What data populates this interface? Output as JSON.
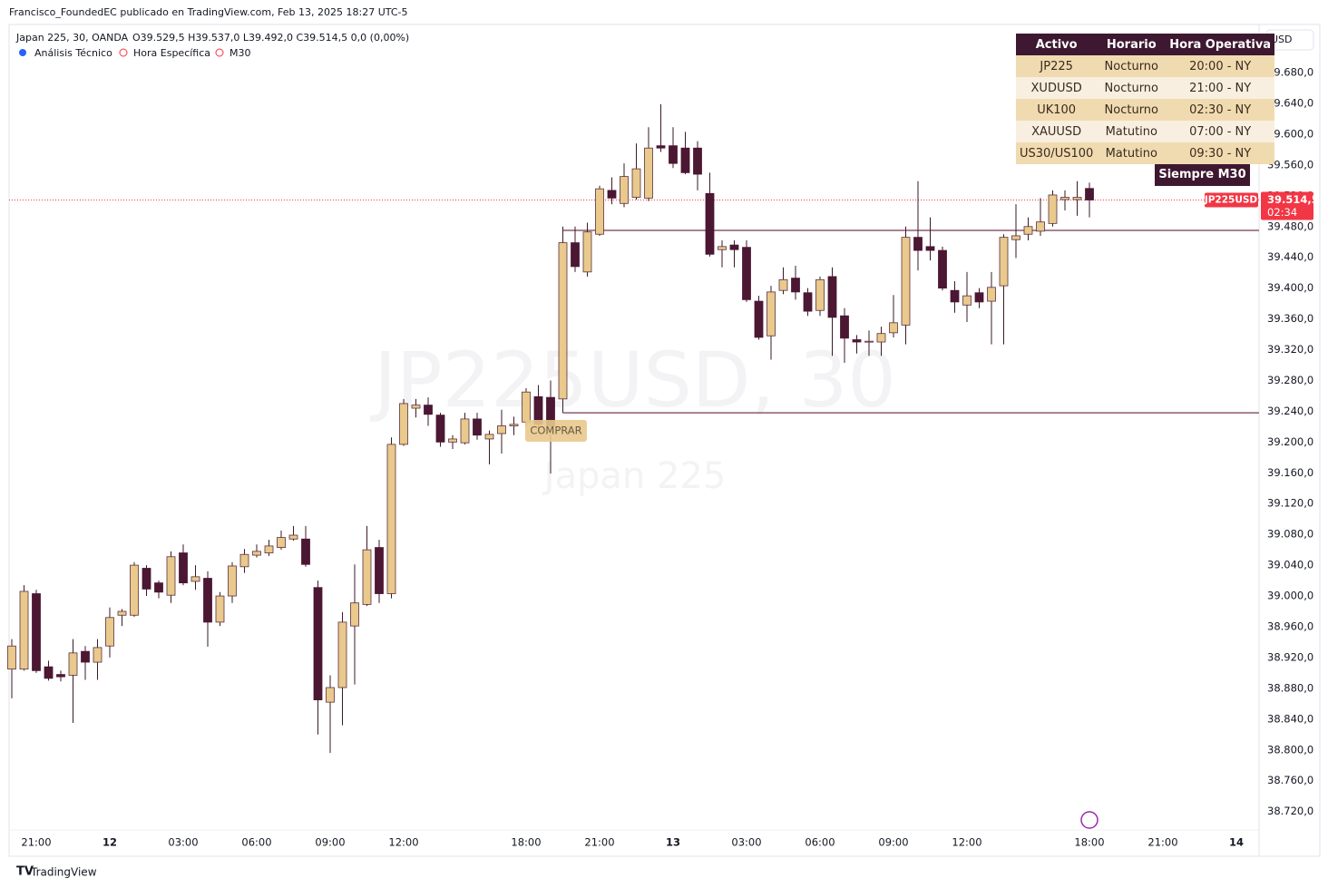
{
  "header": {
    "published": "Francisco_FoundedEC publicado en TradingView.com, Feb 13, 2025 18:27 UTC-5",
    "symbol": "Japan 225, 30, OANDA",
    "ohlc": "O39.529,5 H39.537,0 L39.492,0 C39.514,5 0,0 (0,00%)",
    "indicators": [
      "Análisis Técnico",
      "Hora Específica",
      "M30"
    ],
    "currency": "USD"
  },
  "watermark": {
    "main": "JP225USD, 30",
    "sub": "Japan 225"
  },
  "table": {
    "columns": [
      "Activo",
      "Horario",
      "Hora Operativa"
    ],
    "rows": [
      [
        "JP225",
        "Nocturno",
        "20:00 - NY"
      ],
      [
        "XUDUSD",
        "Nocturno",
        "21:00 - NY"
      ],
      [
        "UK100",
        "Nocturno",
        "02:30 - NY"
      ],
      [
        "XAUUSD",
        "Matutino",
        "07:00 - NY"
      ],
      [
        "US30/US100",
        "Matutino",
        "09:30 - NY"
      ]
    ],
    "footer": "Siempre M30"
  },
  "chart_data": {
    "type": "candlestick",
    "categories": [
      null,
      null,
      "21:00",
      null,
      null,
      null,
      null,
      null,
      "12",
      null,
      null,
      null,
      null,
      null,
      "03:00",
      null,
      null,
      null,
      null,
      null,
      "06:00",
      null,
      null,
      null,
      null,
      null,
      "09:00",
      null,
      null,
      null,
      null,
      null,
      "12:00",
      null,
      null,
      null,
      null,
      null,
      null,
      null,
      null,
      null,
      "18:00",
      null,
      null,
      null,
      null,
      null,
      "21:00",
      null,
      null,
      null,
      null,
      null,
      "13",
      null,
      null,
      null,
      null,
      null,
      "03:00",
      null,
      null,
      null,
      null,
      null,
      "06:00",
      null,
      null,
      null,
      null,
      null,
      "09:00",
      null,
      null,
      null,
      null,
      null,
      "12:00",
      null,
      null,
      null,
      null,
      null,
      null,
      null,
      null,
      null,
      "18:00",
      null,
      null,
      null,
      null,
      null,
      "21:00",
      null,
      null,
      null,
      null,
      null,
      "14"
    ],
    "open": [
      38905,
      38905,
      39003,
      38908,
      38898,
      38897,
      38928,
      38914,
      38935,
      38975,
      38975,
      39036,
      39017,
      39001,
      39056,
      39019,
      39023,
      38966,
      39000,
      39038,
      39053,
      39056,
      39063,
      39074,
      39074,
      39011,
      38862,
      38881,
      38961,
      38989,
      39063,
      39003,
      39197,
      39244,
      39248,
      39235,
      39200,
      39199,
      39230,
      39204,
      39211,
      39221,
      39226,
      39259,
      39258,
      39256,
      39459,
      39421,
      39470,
      39527,
      39510,
      39518,
      39517,
      39585,
      39585,
      39582,
      39582,
      39523,
      39450,
      39456,
      39453,
      39383,
      39338,
      39397,
      39413,
      39394,
      39371,
      39415,
      39364,
      39333,
      39330,
      39330,
      39342,
      39352,
      39466,
      39454,
      39449,
      39397,
      39378,
      39394,
      39383,
      39403,
      39463,
      39470,
      39474,
      39484,
      39515,
      39515,
      39529.5,
      null,
      null,
      null,
      null,
      null,
      null,
      null,
      null,
      null,
      null,
      null,
      null
    ],
    "high": [
      38944,
      39014,
      39008,
      38916,
      38903,
      38944,
      38935,
      38944,
      38985,
      38983,
      39044,
      39040,
      39020,
      39058,
      39067,
      39040,
      39032,
      39005,
      39044,
      39061,
      39067,
      39073,
      39085,
      39091,
      39091,
      39020,
      38897,
      38979,
      39041,
      39091,
      39073,
      39206,
      39256,
      39256,
      39258,
      39238,
      39209,
      39238,
      39238,
      39215,
      39242,
      39233,
      39270,
      39274,
      39280,
      39480,
      39480,
      39485,
      39533,
      39544,
      39562,
      39588,
      39609,
      39639,
      39609,
      39603,
      39591,
      39550,
      39462,
      39462,
      39462,
      39390,
      39403,
      39427,
      39429,
      39400,
      39415,
      39427,
      39374,
      39339,
      39345,
      39350,
      39391,
      39480,
      39539,
      39492,
      39454,
      39409,
      39421,
      39400,
      39421,
      39470,
      39509,
      39492,
      39517,
      39527,
      39527,
      39539,
      39537,
      null,
      null,
      null,
      null,
      null,
      null,
      null,
      null,
      null,
      null,
      null,
      null
    ],
    "low": [
      38867,
      38903,
      38900,
      38890,
      38889,
      38835,
      38891,
      38891,
      38920,
      38961,
      38973,
      39000,
      38997,
      38991,
      39014,
      39008,
      38934,
      38961,
      38991,
      39030,
      39050,
      39052,
      39060,
      39072,
      39038,
      38820,
      38796,
      38832,
      38885,
      38987,
      38991,
      38997,
      39195,
      39232,
      39221,
      39194,
      39191,
      39197,
      39203,
      39171,
      39185,
      39209,
      39221,
      39215,
      39159,
      39238,
      39421,
      39415,
      39468,
      39509,
      39505,
      39515,
      39513,
      39577,
      39556,
      39548,
      39527,
      39441,
      39427,
      39427,
      39382,
      39333,
      39307,
      39392,
      39385,
      39364,
      39364,
      39312,
      39303,
      39315,
      39312,
      39312,
      39336,
      39327,
      39423,
      39436,
      39397,
      39368,
      39356,
      39374,
      39327,
      39327,
      39439,
      39462,
      39468,
      39480,
      39501,
      39494,
      39492,
      null,
      null,
      null,
      null,
      null,
      null,
      null,
      null,
      null,
      null,
      null,
      null
    ],
    "close": [
      38935,
      39006,
      38903,
      38893,
      38895,
      38926,
      38914,
      38933,
      38972,
      38980,
      39040,
      39009,
      39005,
      39051,
      39017,
      39025,
      38966,
      39000,
      39039,
      39054,
      39058,
      39065,
      39076,
      39079,
      39041,
      38865,
      38881,
      38966,
      38991,
      39060,
      39003,
      39197,
      39250,
      39248,
      39236,
      39200,
      39204,
      39230,
      39209,
      39210,
      39221,
      39223,
      39265,
      39223,
      39221,
      39459,
      39428,
      39473,
      39529,
      39517,
      39545,
      39555,
      39582,
      39582,
      39562,
      39550,
      39548,
      39444,
      39454,
      39450,
      39385,
      39336,
      39395,
      39411,
      39395,
      39370,
      39411,
      39362,
      39335,
      39330,
      39331,
      39341,
      39355,
      39466,
      39449,
      39449,
      39400,
      39382,
      39390,
      39382,
      39401,
      39466,
      39468,
      39480,
      39486,
      39521,
      39518,
      39518,
      39514.5,
      null,
      null,
      null,
      null,
      null,
      null,
      null,
      null,
      null,
      null,
      null,
      null
    ],
    "up_color": "#e9c98c",
    "down_color": "#4b1733",
    "ylim": [
      38696,
      39739
    ],
    "yticks": [
      {
        "value": 38720,
        "label": "38.720,0"
      },
      {
        "value": 38760,
        "label": "38.760,0"
      },
      {
        "value": 38800,
        "label": "38.800,0"
      },
      {
        "value": 38840,
        "label": "38.840,0"
      },
      {
        "value": 38880,
        "label": "38.880,0"
      },
      {
        "value": 38920,
        "label": "38.920,0"
      },
      {
        "value": 38960,
        "label": "38.960,0"
      },
      {
        "value": 39000,
        "label": "39.000,0"
      },
      {
        "value": 39040,
        "label": "39.040,0"
      },
      {
        "value": 39080,
        "label": "39.080,0"
      },
      {
        "value": 39120,
        "label": "39.120,0"
      },
      {
        "value": 39160,
        "label": "39.160,0"
      },
      {
        "value": 39200,
        "label": "39.200,0"
      },
      {
        "value": 39240,
        "label": "39.240,0"
      },
      {
        "value": 39280,
        "label": "39.280,0"
      },
      {
        "value": 39320,
        "label": "39.320,0"
      },
      {
        "value": 39360,
        "label": "39.360,0"
      },
      {
        "value": 39400,
        "label": "39.400,0"
      },
      {
        "value": 39440,
        "label": "39.440,0"
      },
      {
        "value": 39480,
        "label": "39.480,0"
      },
      {
        "value": 39520,
        "label": "39.520,0"
      },
      {
        "value": 39560,
        "label": "39.560,0"
      },
      {
        "value": 39600,
        "label": "39.600,0"
      },
      {
        "value": 39640,
        "label": "39.640,0"
      },
      {
        "value": 39680,
        "label": "39.680,0"
      }
    ],
    "grid": false,
    "levels": [
      39475,
      39238
    ],
    "annotation": "COMPRAR",
    "price_tag": {
      "symbol": "JP225USD",
      "value": 39514.5,
      "label": "39.514,5",
      "countdown": "02:34"
    }
  },
  "footer": "TradingView"
}
